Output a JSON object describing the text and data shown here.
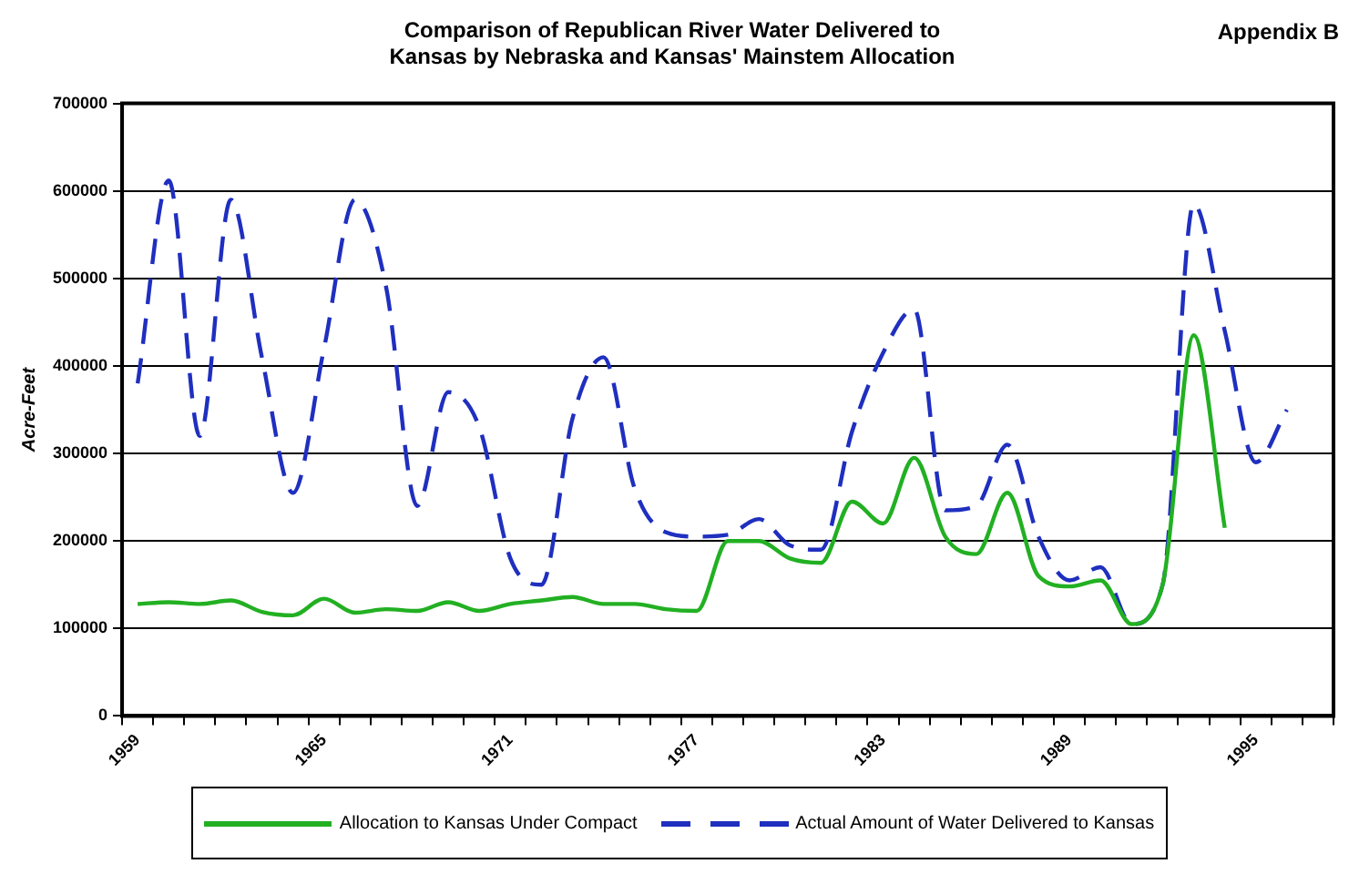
{
  "chart_data": {
    "type": "line",
    "title": "Comparison of Republican River Water Delivered to Kansas by Nebraska and Kansas' Mainstem Allocation",
    "annotations": [
      "Appendix B"
    ],
    "ylabel": "Acre-Feet",
    "categories": [
      "1959",
      null,
      null,
      null,
      null,
      null,
      "1965",
      null,
      null,
      null,
      null,
      null,
      "1971",
      null,
      null,
      null,
      null,
      null,
      "1977",
      null,
      null,
      null,
      null,
      null,
      "1983",
      null,
      null,
      null,
      null,
      null,
      "1989",
      null,
      null,
      null,
      null,
      null,
      "1995",
      null,
      null
    ],
    "series": [
      {
        "name": "Allocation to Kansas Under Compact",
        "color": "#22b022",
        "line_style": "solid",
        "values": [
          128000,
          130000,
          128000,
          132000,
          119000,
          115000,
          134000,
          118000,
          122000,
          120000,
          130000,
          120000,
          128000,
          132000,
          136000,
          128000,
          128000,
          122000,
          120000,
          200000,
          200000,
          180000,
          175000,
          245000,
          220000,
          295000,
          205000,
          185000,
          255000,
          160000,
          148000,
          155000,
          105000,
          150000,
          435000,
          215000,
          null,
          null,
          null
        ]
      },
      {
        "name": "Actual Amount of Water Delivered to Kansas",
        "color": "#1f2fbf",
        "line_style": "dashed",
        "values": [
          380000,
          612000,
          320000,
          590000,
          410000,
          255000,
          420000,
          590000,
          490000,
          240000,
          370000,
          330000,
          180000,
          150000,
          340000,
          410000,
          260000,
          210000,
          205000,
          207000,
          225000,
          195000,
          190000,
          325000,
          415000,
          465000,
          235000,
          240000,
          310000,
          205000,
          155000,
          170000,
          105000,
          150000,
          585000,
          440000,
          290000,
          350000,
          null
        ]
      }
    ],
    "ylim": [
      0,
      700000
    ],
    "yticks": [
      0,
      100000,
      200000,
      300000,
      400000,
      500000,
      600000,
      700000
    ],
    "grid": "y",
    "legend": "bottom",
    "marker": "none"
  }
}
